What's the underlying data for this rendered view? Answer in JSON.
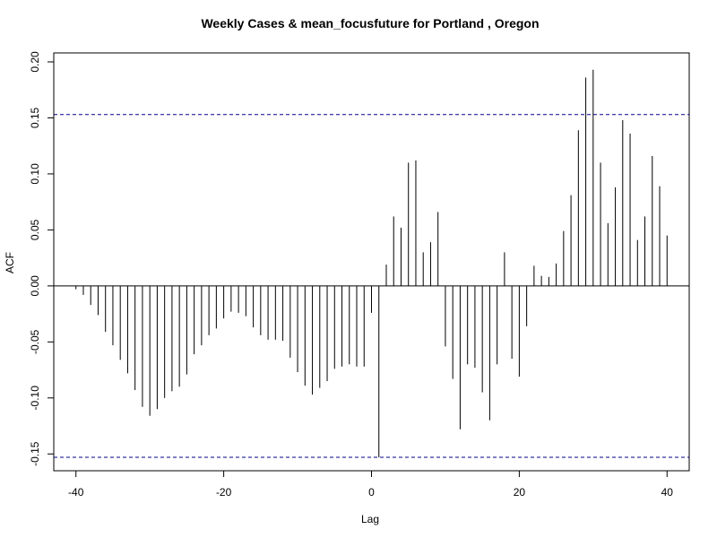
{
  "chart_data": {
    "type": "bar",
    "title": "Weekly Cases & mean_focusfuture for Portland , Oregon",
    "xlabel": "Lag",
    "ylabel": "ACF",
    "xlim": [
      -43,
      43
    ],
    "ylim": [
      -0.165,
      0.208
    ],
    "x_ticks": [
      -40,
      -20,
      0,
      20,
      40
    ],
    "x_tick_labels": [
      "-40",
      "-20",
      "0",
      "20",
      "40"
    ],
    "y_ticks": [
      -0.15,
      -0.1,
      -0.05,
      0.0,
      0.05,
      0.1,
      0.15,
      0.2
    ],
    "y_tick_labels": [
      "-0.15",
      "-0.10",
      "-0.05",
      "0.00",
      "0.05",
      "0.10",
      "0.15",
      "0.20"
    ],
    "confidence_bound": 0.153,
    "colors": {
      "bars": "#000000",
      "zero_line": "#000000",
      "confidence_line": "#00008b"
    },
    "grid": false,
    "x": [
      -40,
      -39,
      -38,
      -37,
      -36,
      -35,
      -34,
      -33,
      -32,
      -31,
      -30,
      -29,
      -28,
      -27,
      -26,
      -25,
      -24,
      -23,
      -22,
      -21,
      -20,
      -19,
      -18,
      -17,
      -16,
      -15,
      -14,
      -13,
      -12,
      -11,
      -10,
      -9,
      -8,
      -7,
      -6,
      -5,
      -4,
      -3,
      -2,
      -1,
      0,
      1,
      2,
      3,
      4,
      5,
      6,
      7,
      8,
      9,
      10,
      11,
      12,
      13,
      14,
      15,
      16,
      17,
      18,
      19,
      20,
      21,
      22,
      23,
      24,
      25,
      26,
      27,
      28,
      29,
      30,
      31,
      32,
      33,
      34,
      35,
      36,
      37,
      38,
      39,
      40
    ],
    "values": [
      -0.003,
      -0.008,
      -0.017,
      -0.026,
      -0.041,
      -0.053,
      -0.066,
      -0.078,
      -0.093,
      -0.108,
      -0.116,
      -0.11,
      -0.1,
      -0.094,
      -0.09,
      -0.079,
      -0.061,
      -0.053,
      -0.044,
      -0.038,
      -0.029,
      -0.023,
      -0.024,
      -0.027,
      -0.037,
      -0.044,
      -0.048,
      -0.048,
      -0.049,
      -0.064,
      -0.077,
      -0.089,
      -0.097,
      -0.091,
      -0.085,
      -0.074,
      -0.072,
      -0.07,
      -0.072,
      -0.072,
      -0.024,
      -0.153,
      0.019,
      0.062,
      0.052,
      0.11,
      0.112,
      0.03,
      0.039,
      0.066,
      -0.054,
      -0.083,
      -0.128,
      -0.07,
      -0.073,
      -0.095,
      -0.12,
      -0.07,
      0.03,
      -0.065,
      -0.081,
      -0.036,
      0.018,
      0.009,
      0.008,
      0.02,
      0.049,
      0.081,
      0.139,
      0.186,
      0.193,
      0.11,
      0.056,
      0.088,
      0.148,
      0.136,
      0.041,
      0.062,
      0.116,
      0.089,
      0.045
    ]
  }
}
